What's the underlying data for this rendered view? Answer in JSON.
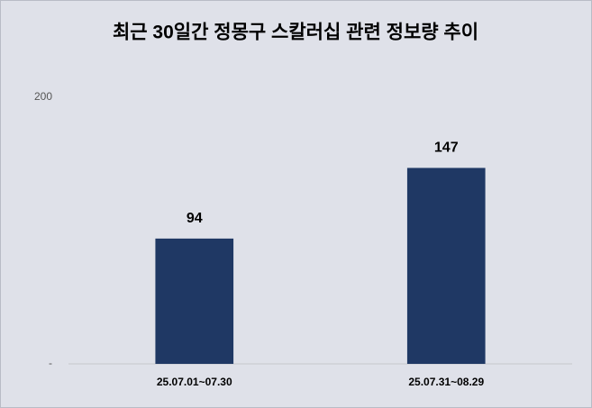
{
  "chart_data": {
    "type": "bar",
    "title": "최근 30일간 정몽구 스칼러십 관련 정보량 추이",
    "categories": [
      "25.07.01~07.30",
      "25.07.31~08.29"
    ],
    "values": [
      94,
      147
    ],
    "color": "#1f3864",
    "ylim": [
      0,
      200
    ],
    "yticks": [
      {
        "value": 0,
        "label": "-"
      },
      200
    ],
    "grid": false
  }
}
